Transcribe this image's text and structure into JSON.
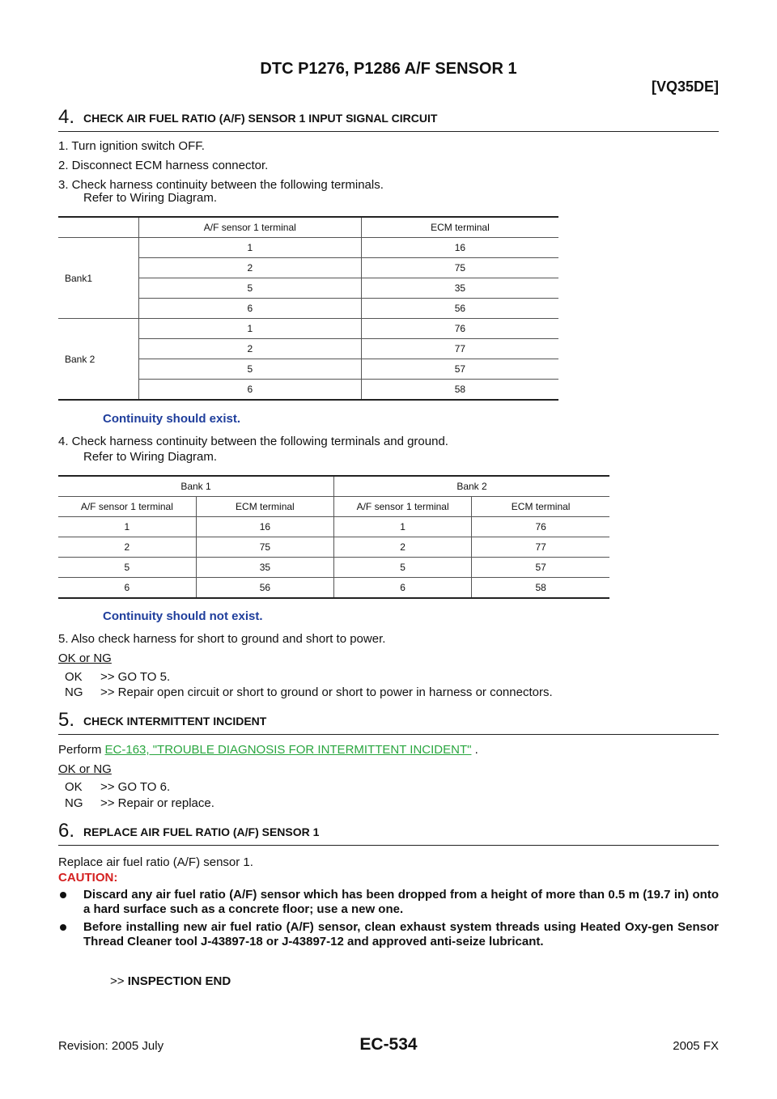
{
  "header": {
    "title": "DTC P1276, P1286 A/F SENSOR 1",
    "engine": "[VQ35DE]"
  },
  "step4": {
    "number": "4.",
    "heading": "CHECK AIR FUEL RATIO (A/F) SENSOR 1 INPUT SIGNAL CIRCUIT",
    "items": [
      "1.  Turn ignition switch OFF.",
      "2.  Disconnect ECM harness connector.",
      "3.  Check harness continuity between the following terminals.",
      "Refer to Wiring Diagram."
    ],
    "table1": {
      "header": [
        "A/F sensor 1 terminal",
        "ECM terminal"
      ],
      "groups": [
        {
          "label": "Bank1",
          "rows": [
            [
              "1",
              "16"
            ],
            [
              "2",
              "75"
            ],
            [
              "5",
              "35"
            ],
            [
              "6",
              "56"
            ]
          ]
        },
        {
          "label": "Bank 2",
          "rows": [
            [
              "1",
              "76"
            ],
            [
              "2",
              "77"
            ],
            [
              "5",
              "57"
            ],
            [
              "6",
              "58"
            ]
          ]
        }
      ]
    },
    "note1": "Continuity should exist.",
    "items2": [
      "4.  Check harness continuity between the following terminals and ground.",
      "Refer to Wiring Diagram."
    ],
    "table2": {
      "banks": [
        "Bank 1",
        "Bank 2"
      ],
      "header": [
        "A/F sensor 1 terminal",
        "ECM terminal",
        "A/F sensor 1 terminal",
        "ECM terminal"
      ],
      "rows": [
        [
          "1",
          "16",
          "1",
          "76"
        ],
        [
          "2",
          "75",
          "2",
          "77"
        ],
        [
          "5",
          "35",
          "5",
          "57"
        ],
        [
          "6",
          "56",
          "6",
          "58"
        ]
      ]
    },
    "note2": "Continuity should not exist.",
    "item5": "5.  Also check harness for short to ground and short to power.",
    "result": "OK or NG",
    "outcomes": [
      {
        "code": "OK",
        "text": ">> GO TO 5."
      },
      {
        "code": "NG",
        "text": ">> Repair open circuit or short to ground or short to power in harness or connectors."
      }
    ]
  },
  "step5": {
    "number": "5.",
    "heading": "CHECK INTERMITTENT INCIDENT",
    "perform": "Perform",
    "link": "EC-163, \"TROUBLE DIAGNOSIS FOR INTERMITTENT INCIDENT\"",
    "period": ".",
    "result": "OK or NG",
    "outcomes": [
      {
        "code": "OK",
        "text": ">> GO TO 6."
      },
      {
        "code": "NG",
        "text": ">> Repair or replace."
      }
    ]
  },
  "step6": {
    "number": "6.",
    "heading": "REPLACE AIR FUEL RATIO (A/F) SENSOR 1",
    "text": "Replace air fuel ratio (A/F) sensor 1.",
    "caution": "CAUTION:",
    "bullets": [
      "Discard any air fuel ratio (A/F) sensor which has been dropped from a height of more than 0.5 m (19.7 in) onto a hard surface such as a concrete floor; use a new one.",
      "Before installing new air fuel ratio (A/F) sensor, clean exhaust system threads using Heated Oxy-gen Sensor Thread Cleaner tool J-43897-18 or J-43897-12 and approved anti-seize lubricant."
    ],
    "end_arrow": ">>",
    "end": "INSPECTION END"
  },
  "footer": {
    "revision": "Revision: 2005 July",
    "page": "EC-534",
    "model": "2005 FX"
  }
}
